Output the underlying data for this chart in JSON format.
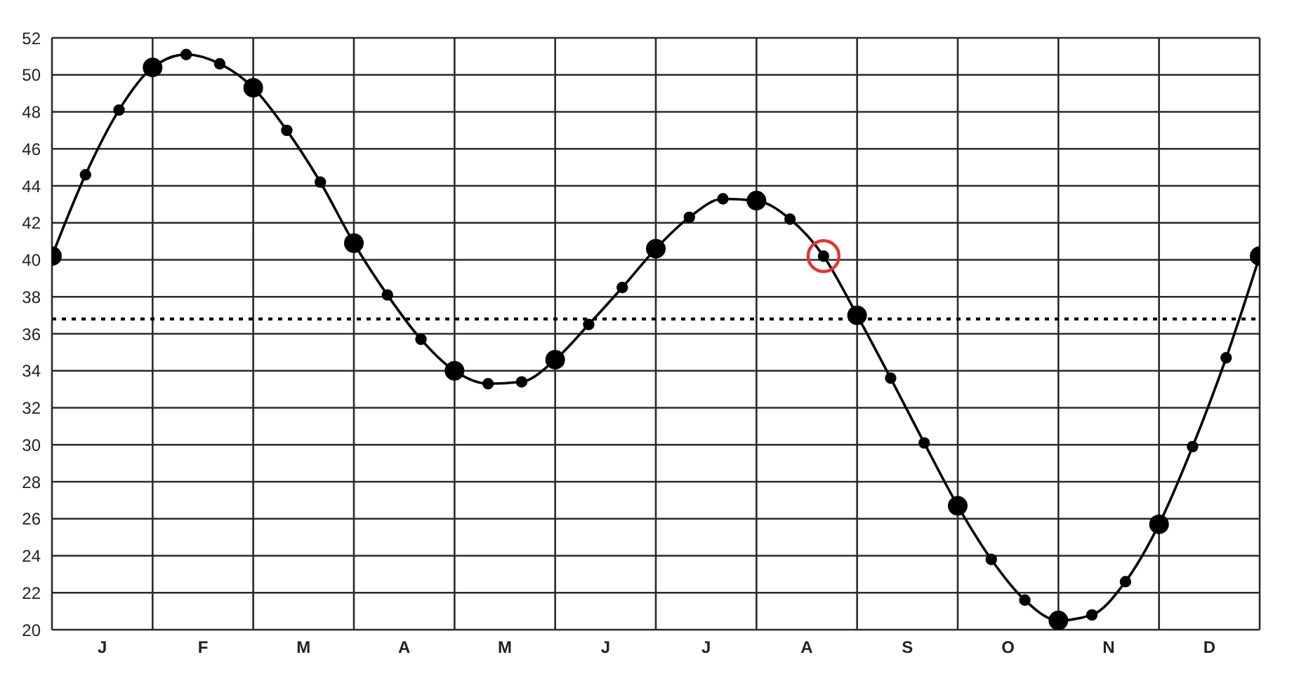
{
  "chart_data": {
    "type": "line",
    "categories": [
      null,
      null,
      null,
      "J",
      null,
      null,
      null,
      null,
      null,
      "F",
      null,
      null,
      null,
      null,
      null,
      "M",
      null,
      null,
      null,
      null,
      null,
      "A",
      null,
      null,
      null,
      null,
      null,
      "M",
      null,
      null,
      null,
      null,
      null,
      "J",
      null,
      null,
      null,
      null,
      null,
      "J",
      null,
      null,
      null,
      null,
      null,
      "A",
      null,
      null,
      null,
      null,
      null,
      "S",
      null,
      null,
      null,
      null,
      null,
      "O",
      null,
      null,
      null,
      null,
      null,
      "N",
      null,
      null,
      null,
      null,
      null,
      "D",
      null,
      null,
      null
    ],
    "ylim": [
      20,
      52
    ],
    "yticks": [
      20,
      22,
      24,
      26,
      28,
      30,
      32,
      34,
      36,
      38,
      40,
      42,
      44,
      46,
      48,
      50,
      52
    ],
    "grid": true,
    "marker": "circle",
    "ref_lines": [
      {
        "axis": "y",
        "value": 36.8,
        "color": "#000000",
        "line_style": "dotted"
      }
    ],
    "series": [
      {
        "color": "#000000",
        "values": [
          40.2,
          null,
          44.6,
          null,
          48.1,
          null,
          50.4,
          null,
          51.1,
          null,
          50.6,
          null,
          49.3,
          null,
          47.0,
          null,
          44.2,
          null,
          40.9,
          null,
          38.1,
          null,
          35.7,
          null,
          34.0,
          null,
          33.3,
          null,
          33.4,
          null,
          34.6,
          null,
          36.5,
          null,
          38.5,
          null,
          40.6,
          null,
          42.3,
          null,
          43.3,
          null,
          43.2,
          null,
          42.2,
          null,
          40.2,
          null,
          37.0,
          null,
          33.6,
          null,
          30.1,
          null,
          26.7,
          null,
          23.8,
          null,
          21.6,
          null,
          20.5,
          null,
          20.8,
          null,
          22.6,
          null,
          25.7,
          null,
          29.9,
          null,
          34.7,
          null,
          40.2
        ]
      },
      {
        "type": "scatter",
        "color": "#000000",
        "values": [
          40.2,
          null,
          null,
          null,
          null,
          null,
          50.4,
          null,
          null,
          null,
          null,
          null,
          49.3,
          null,
          null,
          null,
          null,
          null,
          40.9,
          null,
          null,
          null,
          null,
          null,
          34.0,
          null,
          null,
          null,
          null,
          null,
          34.6,
          null,
          null,
          null,
          null,
          null,
          40.6,
          null,
          null,
          null,
          null,
          null,
          43.2,
          null,
          null,
          null,
          null,
          null,
          37.0,
          null,
          null,
          null,
          null,
          null,
          26.7,
          null,
          null,
          null,
          null,
          null,
          20.5,
          null,
          null,
          null,
          null,
          null,
          25.7,
          null,
          null,
          null,
          null,
          null,
          40.2
        ]
      },
      {
        "type": "scatter",
        "color": "#e8322a",
        "line_style": "solid",
        "values": [
          null,
          null,
          null,
          null,
          null,
          null,
          null,
          null,
          null,
          null,
          null,
          null,
          null,
          null,
          null,
          null,
          null,
          null,
          null,
          null,
          null,
          null,
          null,
          null,
          null,
          null,
          null,
          null,
          null,
          null,
          null,
          null,
          null,
          null,
          null,
          null,
          null,
          null,
          null,
          null,
          null,
          null,
          null,
          null,
          null,
          null,
          40.2,
          null,
          null,
          null,
          null,
          null,
          null,
          null,
          null,
          null,
          null,
          null,
          null,
          null,
          null,
          null,
          null,
          null,
          null,
          null,
          null,
          null,
          null,
          null,
          null,
          null,
          null
        ]
      }
    ]
  }
}
